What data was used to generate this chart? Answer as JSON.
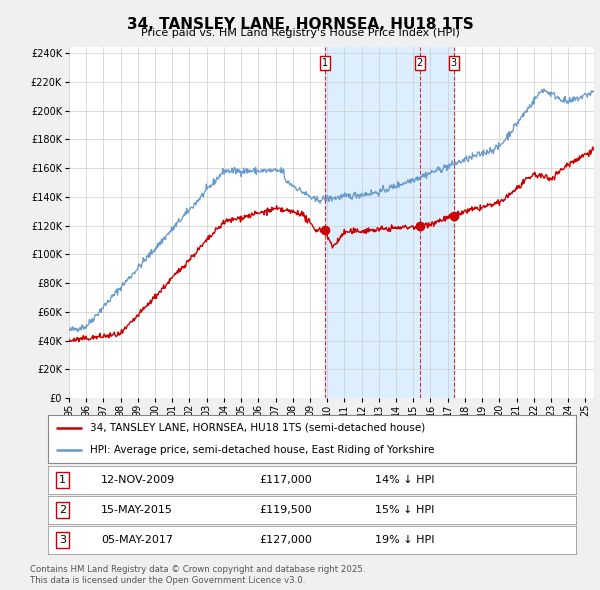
{
  "title": "34, TANSLEY LANE, HORNSEA, HU18 1TS",
  "subtitle": "Price paid vs. HM Land Registry's House Price Index (HPI)",
  "ylim": [
    0,
    244000
  ],
  "yticks": [
    0,
    20000,
    40000,
    60000,
    80000,
    100000,
    120000,
    140000,
    160000,
    180000,
    200000,
    220000,
    240000
  ],
  "xlim_start": 1995.0,
  "xlim_end": 2025.5,
  "sale_dates": [
    2009.866,
    2015.37,
    2017.34
  ],
  "sale_prices": [
    117000,
    119500,
    127000
  ],
  "sale_labels": [
    "1",
    "2",
    "3"
  ],
  "sale_info": [
    {
      "label": "1",
      "date": "12-NOV-2009",
      "price": "£117,000",
      "pct": "14% ↓ HPI"
    },
    {
      "label": "2",
      "date": "15-MAY-2015",
      "price": "£119,500",
      "pct": "15% ↓ HPI"
    },
    {
      "label": "3",
      "date": "05-MAY-2017",
      "price": "£127,000",
      "pct": "19% ↓ HPI"
    }
  ],
  "legend_line1": "34, TANSLEY LANE, HORNSEA, HU18 1TS (semi-detached house)",
  "legend_line2": "HPI: Average price, semi-detached house, East Riding of Yorkshire",
  "footer1": "Contains HM Land Registry data © Crown copyright and database right 2025.",
  "footer2": "This data is licensed under the Open Government Licence v3.0.",
  "red_color": "#cc0000",
  "blue_color": "#6699cc",
  "shade_color": "#ddeeff",
  "background_color": "#f0f0f0",
  "plot_bg_color": "#ffffff",
  "grid_color": "#cccccc"
}
